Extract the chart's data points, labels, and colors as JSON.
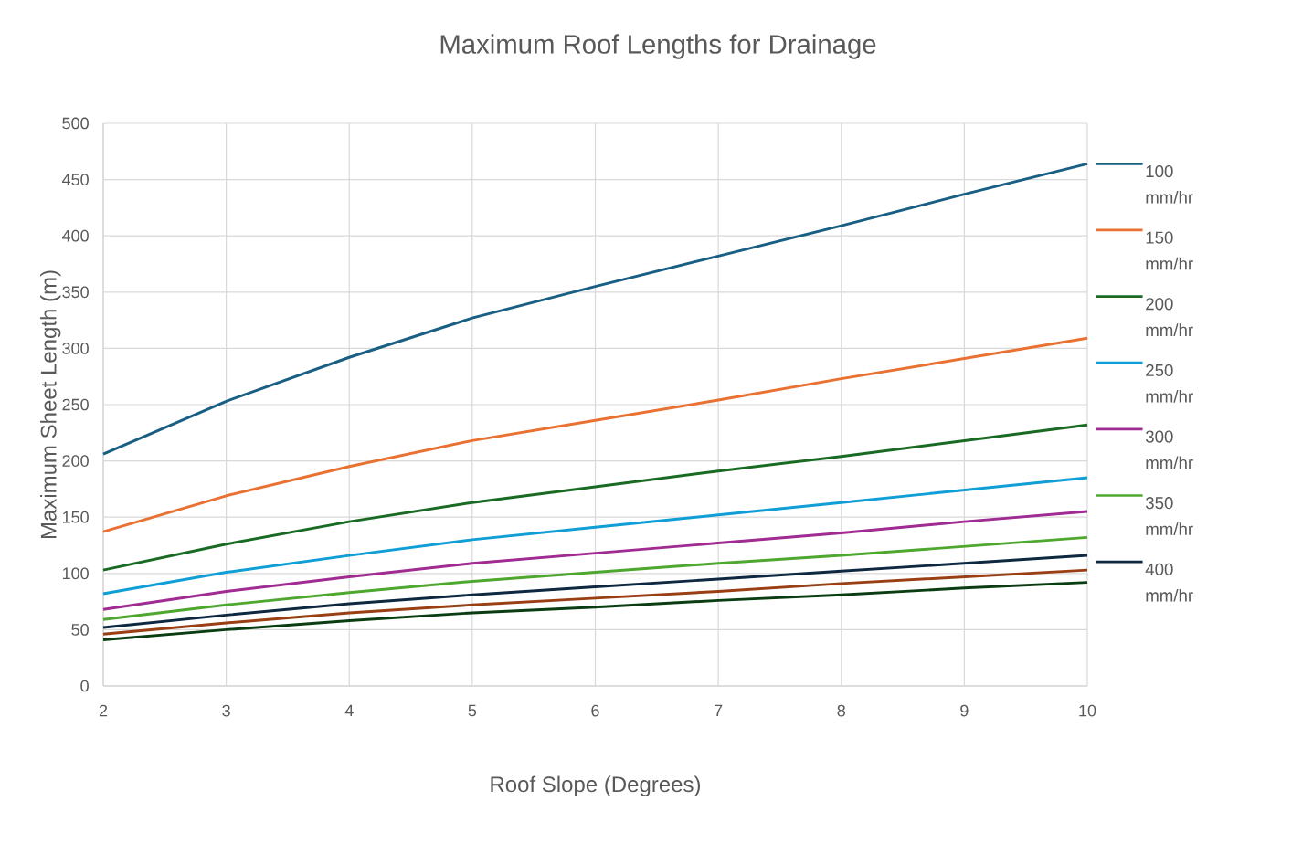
{
  "chart_data": {
    "type": "line",
    "title": "Maximum Roof Lengths for Drainage",
    "xlabel": "Roof Slope (Degrees)",
    "ylabel": "Maximum Sheet Length (m)",
    "x": [
      2,
      3,
      4,
      5,
      6,
      7,
      8,
      9,
      10
    ],
    "series": [
      {
        "name": "100 mm/hr",
        "color": "#195e83",
        "values": [
          206,
          253,
          292,
          327,
          355,
          382,
          409,
          437,
          464
        ]
      },
      {
        "name": "150 mm/hr",
        "color": "#e97132",
        "values": [
          137,
          169,
          195,
          218,
          236,
          254,
          273,
          291,
          309
        ]
      },
      {
        "name": "200 mm/hr",
        "color": "#196b24",
        "values": [
          103,
          126,
          146,
          163,
          177,
          191,
          204,
          218,
          232
        ]
      },
      {
        "name": "250 mm/hr",
        "color": "#0f9ed5",
        "values": [
          82,
          101,
          116,
          130,
          141,
          152,
          163,
          174,
          185
        ]
      },
      {
        "name": "300 mm/hr",
        "color": "#a02b93",
        "values": [
          68,
          84,
          97,
          109,
          118,
          127,
          136,
          146,
          155
        ]
      },
      {
        "name": "350 mm/hr",
        "color": "#4ea72e",
        "values": [
          59,
          72,
          83,
          93,
          101,
          109,
          116,
          124,
          132
        ]
      },
      {
        "name": "400 mm/hr",
        "color": "#0e2841",
        "values": [
          52,
          63,
          73,
          81,
          88,
          95,
          102,
          109,
          116
        ]
      },
      {
        "color": "#9a3f14",
        "values": [
          46,
          56,
          65,
          72,
          78,
          84,
          91,
          97,
          103
        ]
      },
      {
        "color": "#0b3d12",
        "values": [
          41,
          50,
          58,
          65,
          70,
          76,
          81,
          87,
          92
        ]
      }
    ],
    "xlim": [
      2,
      10
    ],
    "ylim": [
      0,
      500
    ],
    "xticks": [
      2,
      3,
      4,
      5,
      6,
      7,
      8,
      9,
      10
    ],
    "yticks": [
      0,
      50,
      100,
      150,
      200,
      250,
      300,
      350,
      400,
      450,
      500
    ],
    "grid": true,
    "legend": "right",
    "marker": "none",
    "line_style": "solid"
  }
}
